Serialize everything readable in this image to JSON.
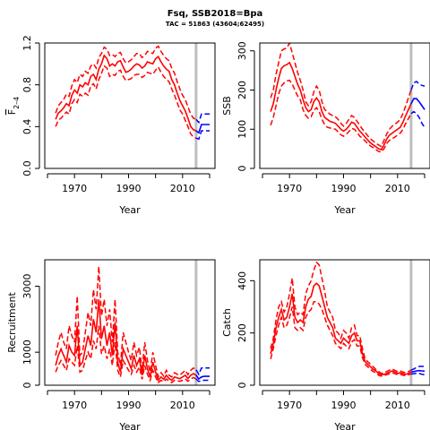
{
  "title": "Fsq, SSB2018=Bpa",
  "subtitle": "TAC = 51863 (43604;62495)",
  "colors": {
    "estimate": "#ff0000",
    "forecast": "#0000ff",
    "marker": "#bebebe",
    "axis": "#000000"
  },
  "chart_data": [
    {
      "id": "fbar",
      "type": "line",
      "xlabel": "Year",
      "ylabel": "F",
      "ylabel_sub": "2–4",
      "xlim": [
        1959,
        2022
      ],
      "ylim": [
        0,
        1.2
      ],
      "xticks": [
        1970,
        1990,
        2010
      ],
      "yticks": [
        0.0,
        0.4,
        0.8,
        1.2
      ],
      "ytick_labels": [
        "0.0",
        "0.4",
        "0.8",
        "1.2"
      ],
      "marker_year": 2015,
      "x": [
        1963,
        1964,
        1965,
        1966,
        1967,
        1968,
        1969,
        1970,
        1971,
        1972,
        1973,
        1974,
        1975,
        1976,
        1977,
        1978,
        1979,
        1980,
        1981,
        1982,
        1983,
        1984,
        1985,
        1986,
        1987,
        1988,
        1989,
        1990,
        1991,
        1992,
        1993,
        1994,
        1995,
        1996,
        1997,
        1998,
        1999,
        2000,
        2001,
        2002,
        2003,
        2004,
        2005,
        2006,
        2007,
        2008,
        2009,
        2010,
        2011,
        2012,
        2013,
        2014,
        2015
      ],
      "series": [
        {
          "role": "estimate",
          "values": [
            0.47,
            0.53,
            0.55,
            0.58,
            0.62,
            0.6,
            0.7,
            0.75,
            0.72,
            0.8,
            0.78,
            0.82,
            0.8,
            0.88,
            0.9,
            0.85,
            0.95,
            1.0,
            1.08,
            1.05,
            0.98,
            1.0,
            0.98,
            1.02,
            1.03,
            0.97,
            0.92,
            0.93,
            0.95,
            0.98,
            1.0,
            0.99,
            0.96,
            0.98,
            1.02,
            1.01,
            1.0,
            1.05,
            1.07,
            1.02,
            0.98,
            0.95,
            0.93,
            0.85,
            0.8,
            0.72,
            0.65,
            0.6,
            0.55,
            0.48,
            0.4,
            0.37,
            0.36
          ]
        },
        {
          "role": "upper",
          "values": [
            0.53,
            0.6,
            0.63,
            0.66,
            0.71,
            0.69,
            0.79,
            0.85,
            0.82,
            0.9,
            0.88,
            0.93,
            0.91,
            0.98,
            1.0,
            0.96,
            1.06,
            1.1,
            1.16,
            1.14,
            1.08,
            1.09,
            1.07,
            1.1,
            1.11,
            1.05,
            1.01,
            1.02,
            1.04,
            1.07,
            1.1,
            1.1,
            1.06,
            1.08,
            1.12,
            1.11,
            1.1,
            1.15,
            1.17,
            1.12,
            1.08,
            1.05,
            1.03,
            0.96,
            0.91,
            0.83,
            0.76,
            0.7,
            0.66,
            0.59,
            0.52,
            0.48,
            0.47
          ]
        },
        {
          "role": "lower",
          "values": [
            0.4,
            0.46,
            0.48,
            0.51,
            0.54,
            0.52,
            0.62,
            0.66,
            0.63,
            0.71,
            0.69,
            0.72,
            0.7,
            0.79,
            0.81,
            0.76,
            0.85,
            0.91,
            0.98,
            0.96,
            0.88,
            0.9,
            0.89,
            0.93,
            0.94,
            0.88,
            0.84,
            0.85,
            0.86,
            0.89,
            0.9,
            0.9,
            0.87,
            0.89,
            0.92,
            0.91,
            0.9,
            0.94,
            0.97,
            0.92,
            0.88,
            0.85,
            0.83,
            0.76,
            0.7,
            0.63,
            0.56,
            0.52,
            0.46,
            0.4,
            0.33,
            0.3,
            0.29
          ]
        }
      ],
      "forecast": {
        "x": [
          2015,
          2016,
          2017,
          2018,
          2019,
          2020
        ],
        "estimate": [
          0.36,
          0.34,
          0.42,
          0.42,
          0.42,
          0.42
        ],
        "upper": [
          0.47,
          0.44,
          0.52,
          0.52,
          0.52,
          0.52
        ],
        "lower": [
          0.29,
          0.28,
          0.36,
          0.36,
          0.36,
          0.36
        ]
      }
    },
    {
      "id": "ssb",
      "type": "line",
      "xlabel": "Year",
      "ylabel": "SSB",
      "xlim": [
        1959,
        2022
      ],
      "ylim": [
        0,
        320
      ],
      "xticks": [
        1970,
        1990,
        2010
      ],
      "yticks": [
        0,
        100,
        200,
        300
      ],
      "ytick_labels": [
        "0",
        "100",
        "200",
        "300"
      ],
      "marker_year": 2015,
      "x": [
        1963,
        1964,
        1965,
        1966,
        1967,
        1968,
        1969,
        1970,
        1971,
        1972,
        1973,
        1974,
        1975,
        1976,
        1977,
        1978,
        1979,
        1980,
        1981,
        1982,
        1983,
        1984,
        1985,
        1986,
        1987,
        1988,
        1989,
        1990,
        1991,
        1992,
        1993,
        1994,
        1995,
        1996,
        1997,
        1998,
        1999,
        2000,
        2001,
        2002,
        2003,
        2004,
        2005,
        2006,
        2007,
        2008,
        2009,
        2010,
        2011,
        2012,
        2013,
        2014,
        2015
      ],
      "series": [
        {
          "role": "estimate",
          "values": [
            145,
            165,
            200,
            230,
            255,
            262,
            265,
            270,
            255,
            235,
            215,
            200,
            175,
            155,
            145,
            150,
            170,
            180,
            170,
            145,
            130,
            125,
            120,
            118,
            115,
            108,
            100,
            95,
            100,
            108,
            118,
            115,
            105,
            95,
            88,
            80,
            72,
            65,
            60,
            55,
            50,
            48,
            60,
            75,
            85,
            90,
            95,
            100,
            105,
            118,
            135,
            150,
            165
          ]
        },
        {
          "role": "upper",
          "values": [
            180,
            200,
            240,
            270,
            300,
            305,
            307,
            320,
            295,
            270,
            245,
            225,
            200,
            170,
            160,
            170,
            195,
            210,
            200,
            170,
            150,
            145,
            138,
            135,
            132,
            125,
            115,
            108,
            115,
            125,
            135,
            130,
            120,
            110,
            100,
            92,
            83,
            75,
            70,
            64,
            60,
            56,
            72,
            88,
            100,
            108,
            113,
            118,
            125,
            140,
            160,
            180,
            200
          ]
        },
        {
          "role": "lower",
          "values": [
            110,
            130,
            160,
            190,
            210,
            218,
            223,
            225,
            215,
            200,
            185,
            175,
            150,
            135,
            128,
            132,
            148,
            155,
            145,
            125,
            112,
            105,
            103,
            102,
            100,
            93,
            86,
            82,
            87,
            94,
            102,
            100,
            92,
            82,
            77,
            70,
            63,
            57,
            53,
            48,
            43,
            42,
            50,
            64,
            72,
            76,
            80,
            85,
            90,
            100,
            115,
            127,
            140
          ]
        }
      ],
      "forecast": {
        "x": [
          2015,
          2016,
          2017,
          2018,
          2019,
          2020
        ],
        "estimate": [
          165,
          178,
          178,
          170,
          160,
          150
        ],
        "upper": [
          200,
          218,
          222,
          215,
          212,
          210
        ],
        "lower": [
          140,
          145,
          140,
          130,
          115,
          105
        ]
      }
    },
    {
      "id": "recruitment",
      "type": "line",
      "xlabel": "Year",
      "ylabel": "Recruitment",
      "xlim": [
        1959,
        2022
      ],
      "ylim": [
        0,
        3800
      ],
      "xticks": [
        1970,
        1990,
        2010
      ],
      "yticks": [
        0,
        1000,
        3000
      ],
      "ytick_labels": [
        "0",
        "1000",
        "3000"
      ],
      "marker_year": 2015,
      "x": [
        1963,
        1964,
        1965,
        1966,
        1967,
        1968,
        1969,
        1970,
        1971,
        1972,
        1973,
        1974,
        1975,
        1976,
        1977,
        1978,
        1979,
        1980,
        1981,
        1982,
        1983,
        1984,
        1985,
        1986,
        1987,
        1988,
        1989,
        1990,
        1991,
        1992,
        1993,
        1994,
        1995,
        1996,
        1997,
        1998,
        1999,
        2000,
        2001,
        2002,
        2003,
        2004,
        2005,
        2006,
        2007,
        2008,
        2009,
        2010,
        2011,
        2012,
        2013,
        2014,
        2015
      ],
      "series": [
        {
          "role": "estimate",
          "values": [
            600,
            900,
            1100,
            900,
            700,
            1200,
            1000,
            900,
            1800,
            600,
            700,
            1100,
            1500,
            1200,
            2000,
            1600,
            2600,
            1400,
            1800,
            1200,
            1600,
            900,
            1900,
            700,
            400,
            1100,
            900,
            700,
            500,
            900,
            600,
            800,
            300,
            900,
            500,
            250,
            700,
            400,
            150,
            250,
            180,
            300,
            200,
            150,
            250,
            220,
            200,
            250,
            300,
            200,
            300,
            350,
            300
          ]
        },
        {
          "role": "upper",
          "values": [
            900,
            1300,
            1600,
            1300,
            1100,
            1800,
            1500,
            1300,
            2700,
            900,
            1000,
            1600,
            2200,
            1800,
            2900,
            2300,
            3600,
            2100,
            2600,
            1800,
            2300,
            1300,
            2600,
            1000,
            600,
            1600,
            1300,
            1000,
            750,
            1300,
            900,
            1150,
            450,
            1300,
            750,
            400,
            1000,
            600,
            250,
            380,
            280,
            450,
            300,
            250,
            380,
            330,
            300,
            380,
            450,
            320,
            450,
            520,
            470
          ]
        },
        {
          "role": "lower",
          "values": [
            400,
            600,
            750,
            600,
            450,
            800,
            700,
            600,
            1200,
            400,
            450,
            750,
            1000,
            800,
            1350,
            1100,
            1800,
            950,
            1200,
            800,
            1100,
            600,
            1300,
            450,
            250,
            750,
            600,
            450,
            330,
            600,
            400,
            550,
            180,
            600,
            330,
            150,
            450,
            250,
            80,
            150,
            100,
            190,
            120,
            80,
            150,
            130,
            120,
            150,
            190,
            120,
            190,
            230,
            190
          ]
        }
      ],
      "forecast": {
        "x": [
          2015,
          2016,
          2017,
          2018,
          2019,
          2020
        ],
        "estimate": [
          300,
          190,
          250,
          270,
          270,
          270
        ],
        "upper": [
          470,
          330,
          520,
          520,
          520,
          520
        ],
        "lower": [
          190,
          110,
          150,
          150,
          150,
          150
        ]
      }
    },
    {
      "id": "catch",
      "type": "line",
      "xlabel": "Year",
      "ylabel": "Catch",
      "xlim": [
        1959,
        2022
      ],
      "ylim": [
        0,
        480
      ],
      "xticks": [
        1970,
        1990,
        2010
      ],
      "yticks": [
        0,
        200,
        400
      ],
      "ytick_labels": [
        "0",
        "200",
        "400"
      ],
      "marker_year": 2015,
      "x": [
        1963,
        1964,
        1965,
        1966,
        1967,
        1968,
        1969,
        1970,
        1971,
        1972,
        1973,
        1974,
        1975,
        1976,
        1977,
        1978,
        1979,
        1980,
        1981,
        1982,
        1983,
        1984,
        1985,
        1986,
        1987,
        1988,
        1989,
        1990,
        1991,
        1992,
        1993,
        1994,
        1995,
        1996,
        1997,
        1998,
        1999,
        2000,
        2001,
        2002,
        2003,
        2004,
        2005,
        2006,
        2007,
        2008,
        2009,
        2010,
        2011,
        2012,
        2013,
        2014,
        2015
      ],
      "series": [
        {
          "role": "estimate",
          "values": [
            120,
            160,
            220,
            260,
            290,
            250,
            260,
            300,
            350,
            260,
            240,
            250,
            240,
            300,
            330,
            340,
            380,
            390,
            380,
            340,
            300,
            260,
            240,
            220,
            180,
            170,
            160,
            180,
            170,
            160,
            190,
            200,
            170,
            170,
            120,
            90,
            80,
            70,
            60,
            55,
            45,
            40,
            42,
            45,
            50,
            55,
            50,
            45,
            48,
            44,
            42,
            45,
            50
          ]
        },
        {
          "role": "upper",
          "values": [
            140,
            180,
            250,
            300,
            320,
            280,
            300,
            350,
            410,
            300,
            270,
            280,
            270,
            350,
            380,
            400,
            440,
            470,
            460,
            410,
            360,
            300,
            280,
            260,
            210,
            200,
            180,
            210,
            200,
            180,
            220,
            230,
            190,
            190,
            140,
            100,
            90,
            80,
            70,
            60,
            52,
            45,
            48,
            52,
            58,
            62,
            57,
            52,
            55,
            50,
            48,
            52,
            58
          ]
        },
        {
          "role": "lower",
          "values": [
            100,
            140,
            190,
            230,
            260,
            220,
            230,
            260,
            300,
            220,
            210,
            220,
            210,
            260,
            280,
            290,
            320,
            320,
            310,
            290,
            260,
            230,
            210,
            190,
            160,
            150,
            140,
            160,
            150,
            140,
            165,
            175,
            150,
            150,
            105,
            80,
            70,
            60,
            52,
            48,
            38,
            35,
            37,
            40,
            44,
            48,
            44,
            40,
            42,
            38,
            36,
            40,
            43
          ]
        }
      ],
      "forecast": {
        "x": [
          2015,
          2016,
          2017,
          2018,
          2019,
          2020
        ],
        "estimate": [
          50,
          52,
          55,
          56,
          55,
          54
        ],
        "upper": [
          58,
          62,
          68,
          72,
          72,
          72
        ],
        "lower": [
          43,
          44,
          46,
          45,
          42,
          40
        ]
      }
    }
  ]
}
